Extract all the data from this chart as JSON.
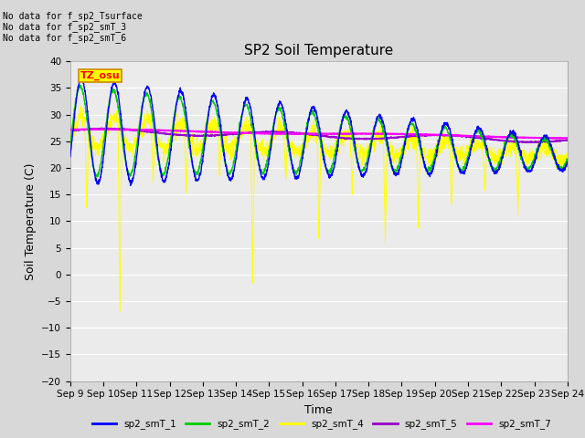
{
  "title": "SP2 Soil Temperature",
  "ylabel": "Soil Temperature (C)",
  "xlabel": "Time",
  "ylim": [
    -20,
    40
  ],
  "yticks": [
    -20,
    -15,
    -10,
    -5,
    0,
    5,
    10,
    15,
    20,
    25,
    30,
    35,
    40
  ],
  "xtick_labels": [
    "Sep 9",
    "Sep 10",
    "Sep 11",
    "Sep 12",
    "Sep 13",
    "Sep 14",
    "Sep 15",
    "Sep 16",
    "Sep 17",
    "Sep 18",
    "Sep 19",
    "Sep 20",
    "Sep 21",
    "Sep 22",
    "Sep 23",
    "Sep 24"
  ],
  "no_data_text": [
    "No data for f_sp2_Tsurface",
    "No data for f_sp2_smT_3",
    "No data for f_sp2_smT_6"
  ],
  "tz_label": "TZ_osu",
  "legend_entries": [
    "sp2_smT_1",
    "sp2_smT_2",
    "sp2_smT_4",
    "sp2_smT_5",
    "sp2_smT_7"
  ],
  "legend_colors": [
    "#0000ff",
    "#00cc00",
    "#ffff00",
    "#9900cc",
    "#ff00ff"
  ],
  "bg_color": "#d8d8d8",
  "plot_bg_color": "#ebebeb",
  "grid_color": "#ffffff",
  "title_fontsize": 11,
  "label_fontsize": 9,
  "tick_fontsize": 7.5
}
